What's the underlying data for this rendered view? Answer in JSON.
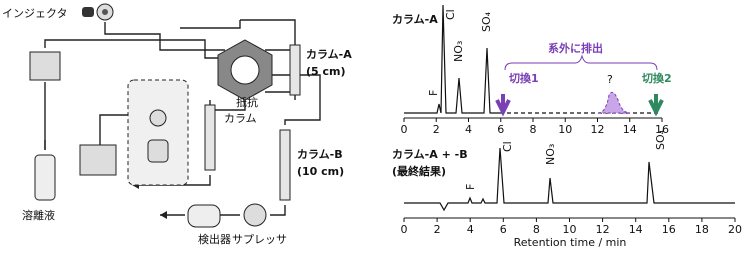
{
  "diagram": {
    "labels": {
      "injector": "インジェクタ",
      "column_a": "カラム-A",
      "column_a_len": "(5 cm)",
      "resistor_1": "抵抗",
      "resistor_2": "カラム",
      "column_b": "カラム-B",
      "column_b_len": "(10 cm)",
      "eluent": "溶離液",
      "detector": "検出器",
      "suppressor": "サプレッサ"
    }
  },
  "chromatograms": [
    {
      "title": "カラム-A",
      "peaks": [
        "F",
        "Cl",
        "NO₃",
        "SO₄"
      ],
      "annotation": "系外に排出",
      "switch_1": "切換1",
      "unknown": "?",
      "switch_2": "切換2",
      "xlim": [
        0,
        16
      ],
      "xticks": [
        0,
        2,
        4,
        6,
        8,
        10,
        12,
        14,
        16
      ]
    },
    {
      "title": "カラム-A + -B",
      "subtitle": "(最終結果)",
      "peaks": [
        "F",
        "Cl",
        "NO₃",
        "SO₄"
      ],
      "xlim": [
        0,
        20
      ],
      "xticks": [
        0,
        2,
        4,
        6,
        8,
        10,
        12,
        14,
        16,
        18,
        20
      ],
      "xlabel": "Retention time / min"
    }
  ]
}
